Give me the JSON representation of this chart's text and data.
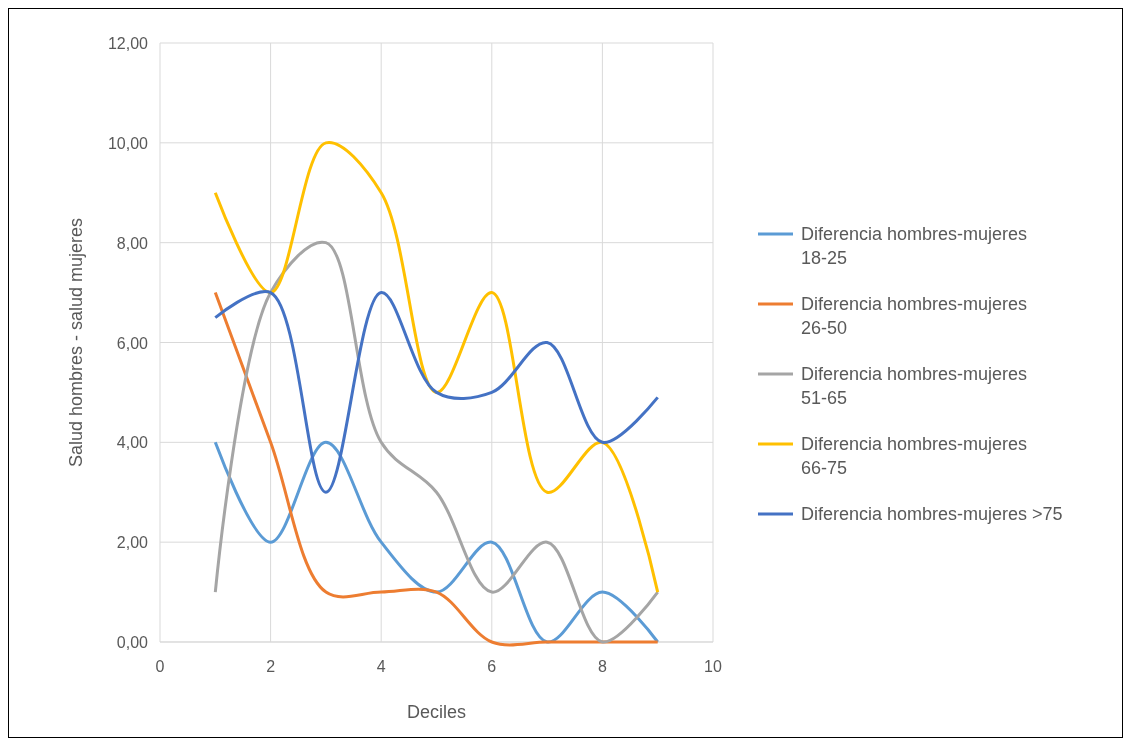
{
  "chart_data": {
    "type": "line",
    "xlabel": "Deciles",
    "ylabel": "Salud hombres - salud mujeres",
    "xlim": [
      0,
      10
    ],
    "xticks": [
      0,
      2,
      4,
      6,
      8,
      10
    ],
    "ylim": [
      0,
      12
    ],
    "yticks": [
      {
        "value": 0,
        "label": "0,00"
      },
      {
        "value": 2,
        "label": "2,00"
      },
      {
        "value": 4,
        "label": "4,00"
      },
      {
        "value": 6,
        "label": "6,00"
      },
      {
        "value": 8,
        "label": "8,00"
      },
      {
        "value": 10,
        "label": "10,00"
      },
      {
        "value": 12,
        "label": "12,00"
      }
    ],
    "grid": true,
    "legend": "right",
    "marker": "none",
    "line_style": "solid",
    "x": [
      1,
      2,
      3,
      4,
      5,
      6,
      7,
      8,
      9
    ],
    "series": [
      {
        "name": "Diferencia hombres-mujeres 18-25",
        "color": "#5b9bd5",
        "values": [
          4,
          2,
          4,
          2,
          1,
          2,
          0,
          1,
          0
        ]
      },
      {
        "name": "Diferencia hombres-mujeres 26-50",
        "color": "#ed7d31",
        "values": [
          7,
          4,
          1,
          1,
          1,
          0,
          0,
          0,
          0
        ]
      },
      {
        "name": "Diferencia hombres-mujeres 51-65",
        "color": "#a5a5a5",
        "values": [
          1,
          7,
          8,
          4,
          3,
          1,
          2,
          0,
          1
        ]
      },
      {
        "name": "Diferencia hombres-mujeres 66-75",
        "color": "#ffc000",
        "values": [
          9,
          7,
          10,
          9,
          5,
          7,
          3,
          4,
          1
        ]
      },
      {
        "name": "Diferencia hombres-mujeres >75",
        "color": "#4472c4",
        "values": [
          6.5,
          7,
          3,
          7,
          5,
          5,
          6,
          4,
          4.9
        ]
      }
    ]
  }
}
